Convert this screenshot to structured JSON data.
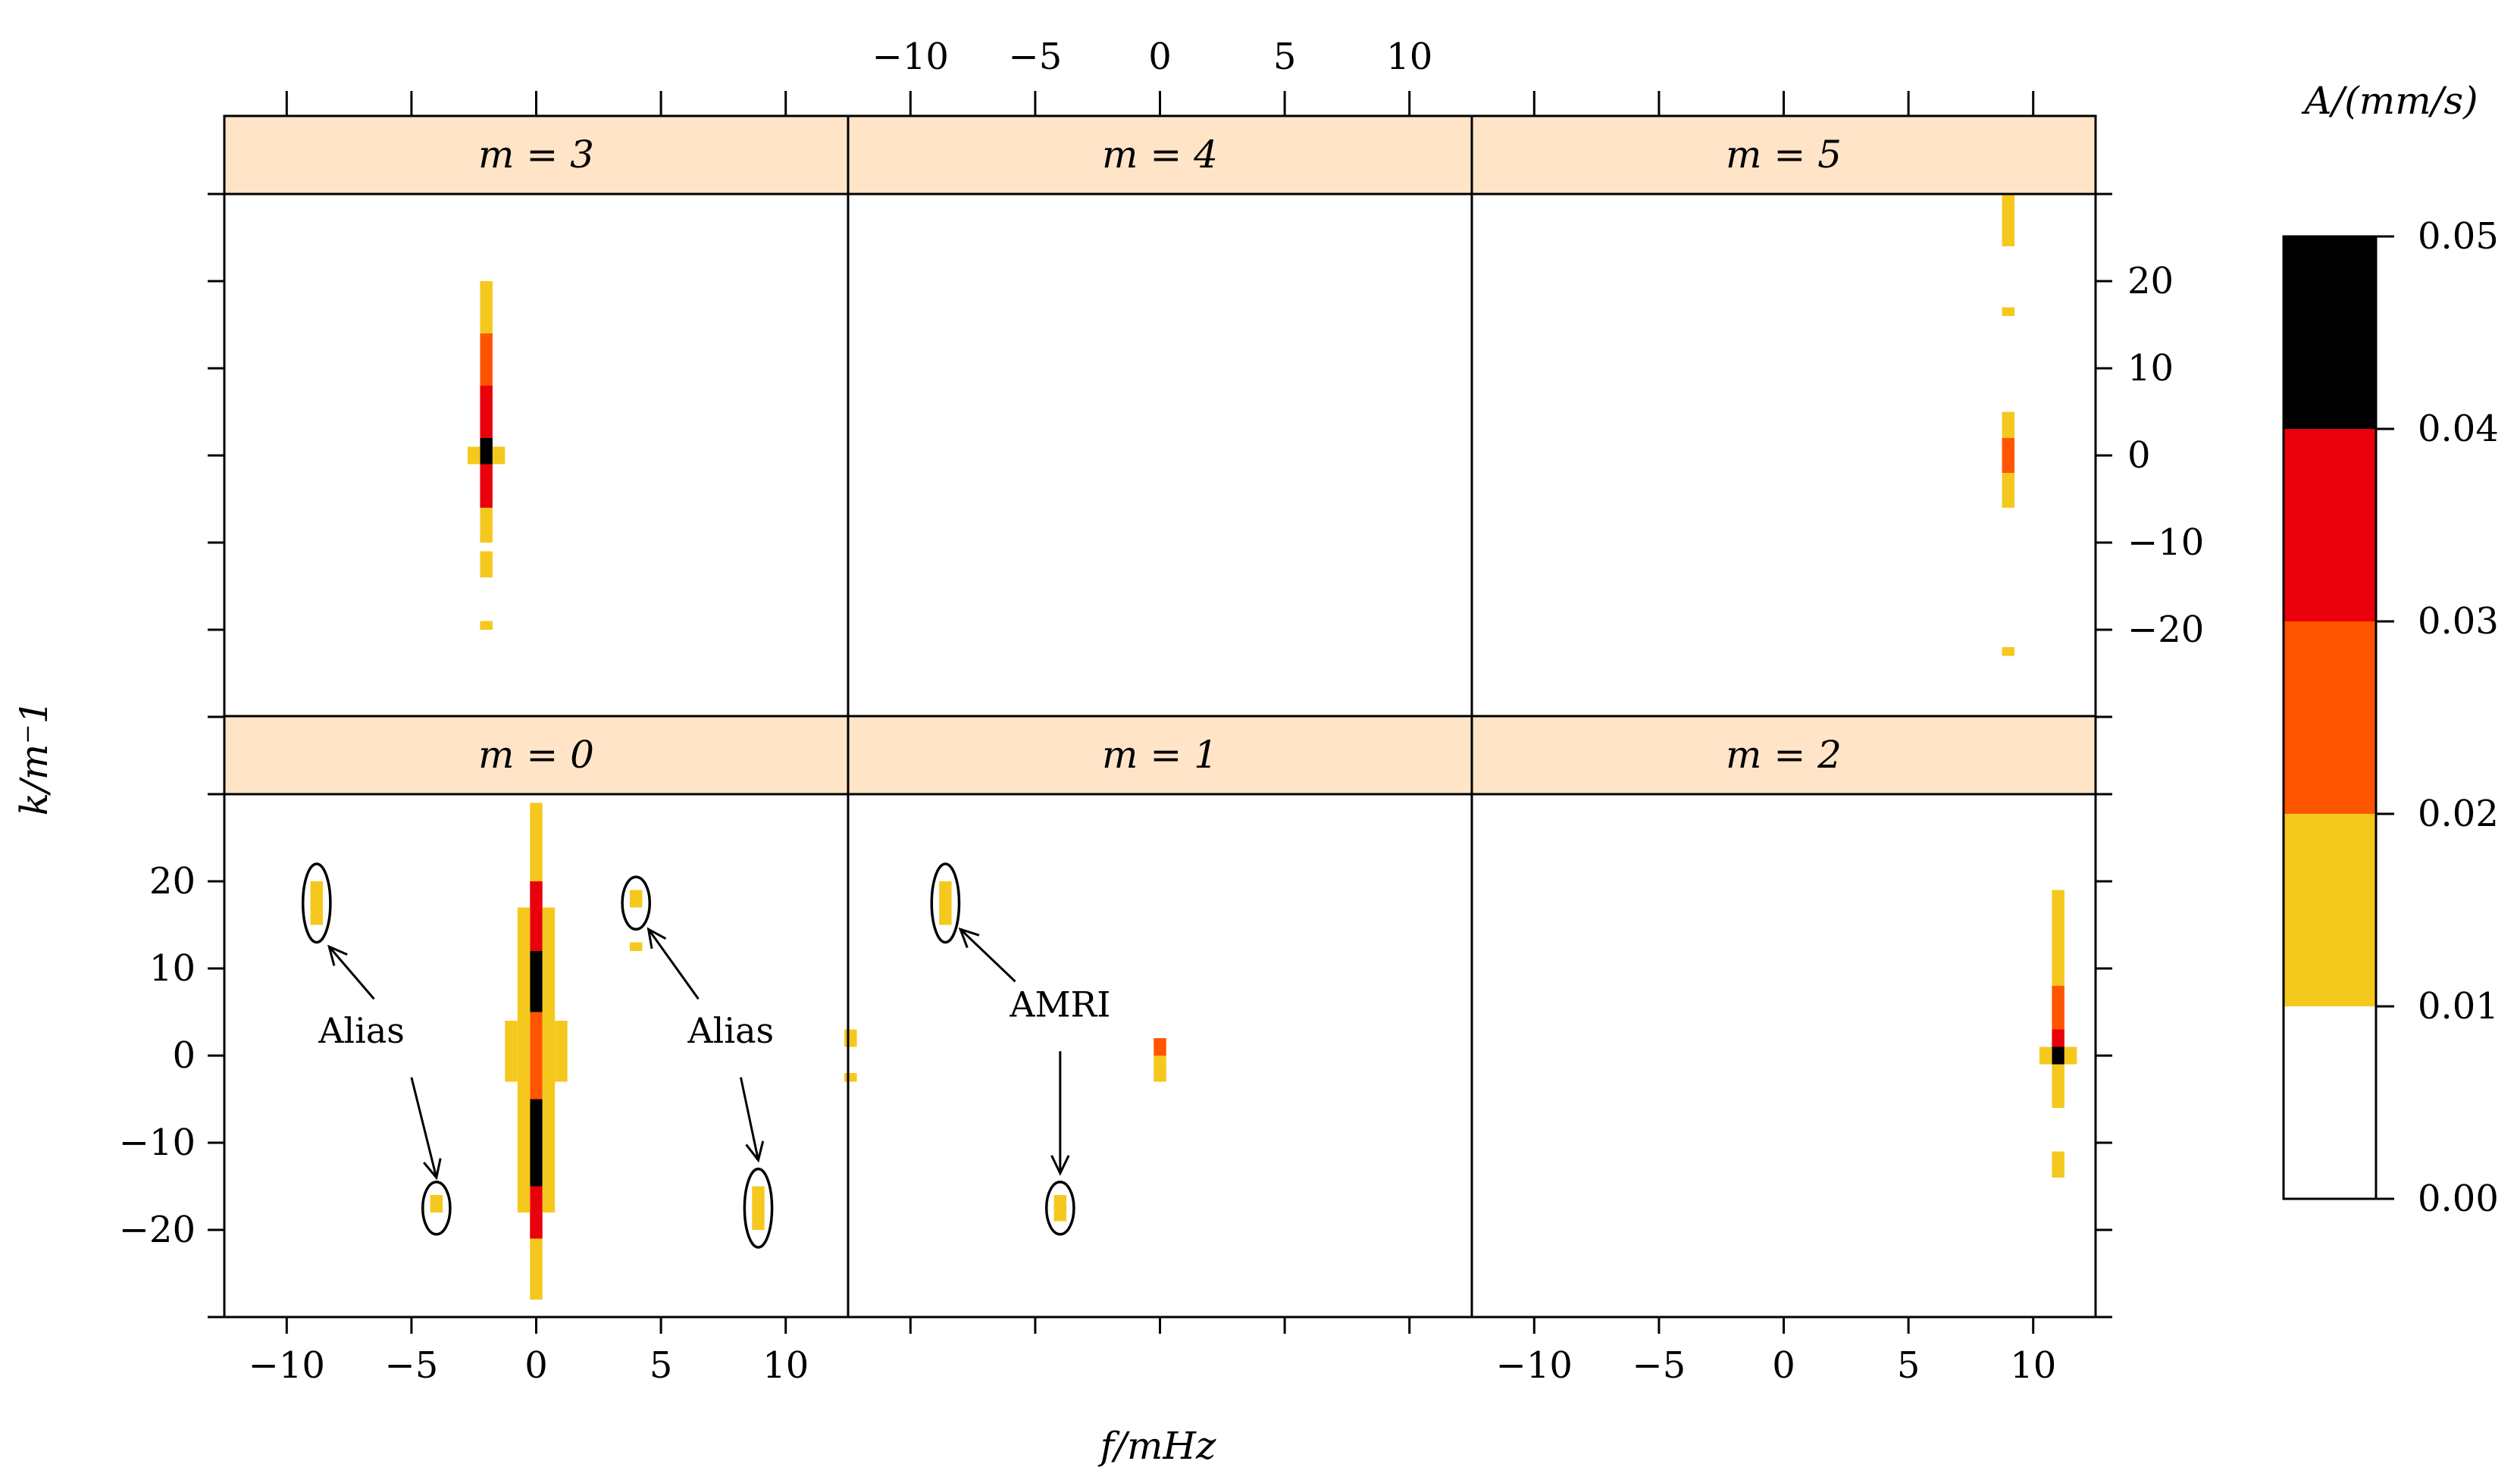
{
  "chart_data": {
    "type": "heatmap",
    "xlabel": "f/mHz",
    "ylabel": "k/m⁻1",
    "xlim": [
      -12.5,
      12.5
    ],
    "ylim": [
      -30,
      30
    ],
    "x_ticks": [
      -10,
      -5,
      0,
      5,
      10
    ],
    "y_ticks": [
      -20,
      -10,
      0,
      10,
      20
    ],
    "x_tick_labels": [
      "−10",
      "−5",
      "0",
      "5",
      "10"
    ],
    "y_tick_labels": [
      "−20",
      "−10",
      "0",
      "10",
      "20"
    ],
    "colorbar": {
      "title": "A/(mm/s)",
      "levels": [
        0.0,
        0.01,
        0.02,
        0.03,
        0.04,
        0.05
      ],
      "level_labels": [
        "0.00",
        "0.01",
        "0.02",
        "0.03",
        "0.04",
        "0.05"
      ],
      "colors": [
        "#ffffff",
        "#f5c81e",
        "#ff5500",
        "#e8000b",
        "#000000"
      ]
    },
    "strip_color": "#ffe4c8",
    "panels": [
      {
        "label": "m = 3",
        "m": 3,
        "row": 0,
        "col": 0,
        "cells": [
          {
            "f": -2.0,
            "k0": 14,
            "k1": 20,
            "level": 1
          },
          {
            "f": -2.0,
            "k0": 8,
            "k1": 14,
            "level": 2
          },
          {
            "f": -2.0,
            "k0": 2,
            "k1": 8,
            "level": 3
          },
          {
            "f": -2.0,
            "k0": -1,
            "k1": 2,
            "level": 4
          },
          {
            "f": -2.0,
            "k0": -6,
            "k1": -1,
            "level": 3
          },
          {
            "f": -2.0,
            "k0": -10,
            "k1": -6,
            "level": 1
          },
          {
            "f": -2.0,
            "k0": -14,
            "k1": -11,
            "level": 1
          },
          {
            "f": -2.0,
            "k0": -20,
            "k1": -19,
            "level": 1
          },
          {
            "f": -2.5,
            "k0": -1,
            "k1": 1,
            "level": 1
          },
          {
            "f": -1.5,
            "k0": -1,
            "k1": 1,
            "level": 1
          }
        ]
      },
      {
        "label": "m = 4",
        "m": 4,
        "row": 0,
        "col": 1,
        "cells": []
      },
      {
        "label": "m = 5",
        "m": 5,
        "row": 0,
        "col": 2,
        "cells": [
          {
            "f": 9.0,
            "k0": 24,
            "k1": 30,
            "level": 1
          },
          {
            "f": 9.0,
            "k0": 16,
            "k1": 17,
            "level": 1
          },
          {
            "f": 9.0,
            "k0": 2,
            "k1": 5,
            "level": 1
          },
          {
            "f": 9.0,
            "k0": -2,
            "k1": 2,
            "level": 2
          },
          {
            "f": 9.0,
            "k0": -6,
            "k1": -2,
            "level": 1
          },
          {
            "f": 9.0,
            "k0": -23,
            "k1": -22,
            "level": 1
          }
        ]
      },
      {
        "label": "m = 0",
        "m": 0,
        "row": 1,
        "col": 0,
        "cells": [
          {
            "f": 0.0,
            "k0": 20,
            "k1": 29,
            "level": 1
          },
          {
            "f": 0.0,
            "k0": 12,
            "k1": 20,
            "level": 3
          },
          {
            "f": 0.0,
            "k0": 5,
            "k1": 12,
            "level": 4
          },
          {
            "f": 0.0,
            "k0": -5,
            "k1": 5,
            "level": 2
          },
          {
            "f": 0.0,
            "k0": -15,
            "k1": -5,
            "level": 4
          },
          {
            "f": 0.0,
            "k0": -21,
            "k1": -15,
            "level": 3
          },
          {
            "f": 0.0,
            "k0": -28,
            "k1": -21,
            "level": 1
          },
          {
            "f": -0.5,
            "k0": -18,
            "k1": 17,
            "level": 1
          },
          {
            "f": 0.5,
            "k0": -18,
            "k1": 17,
            "level": 1
          },
          {
            "f": -1.0,
            "k0": -3,
            "k1": 4,
            "level": 1
          },
          {
            "f": 1.0,
            "k0": -3,
            "k1": 4,
            "level": 1
          },
          {
            "f": -8.8,
            "k0": 15,
            "k1": 20,
            "level": 1
          },
          {
            "f": -4.0,
            "k0": -18,
            "k1": -16,
            "level": 1
          },
          {
            "f": 4.0,
            "k0": 17,
            "k1": 19,
            "level": 1
          },
          {
            "f": 4.0,
            "k0": 12,
            "k1": 13,
            "level": 1
          },
          {
            "f": 8.9,
            "k0": -20,
            "k1": -15,
            "level": 1
          }
        ]
      },
      {
        "label": "m = 1",
        "m": 1,
        "row": 1,
        "col": 1,
        "cells": [
          {
            "f": -12.4,
            "k0": 1,
            "k1": 3,
            "level": 1
          },
          {
            "f": -12.4,
            "k0": -3,
            "k1": -2,
            "level": 1
          },
          {
            "f": -8.6,
            "k0": 15,
            "k1": 20,
            "level": 1
          },
          {
            "f": -4.0,
            "k0": -19,
            "k1": -16,
            "level": 1
          },
          {
            "f": 0.0,
            "k0": 0,
            "k1": 2,
            "level": 2
          },
          {
            "f": 0.0,
            "k0": -3,
            "k1": 0,
            "level": 1
          }
        ]
      },
      {
        "label": "m = 2",
        "m": 2,
        "row": 1,
        "col": 2,
        "cells": [
          {
            "f": 11.0,
            "k0": 8,
            "k1": 19,
            "level": 1
          },
          {
            "f": 11.0,
            "k0": 3,
            "k1": 8,
            "level": 2
          },
          {
            "f": 11.0,
            "k0": 1,
            "k1": 3,
            "level": 3
          },
          {
            "f": 11.0,
            "k0": -1,
            "k1": 1,
            "level": 4
          },
          {
            "f": 11.0,
            "k0": -6,
            "k1": -1,
            "level": 1
          },
          {
            "f": 11.0,
            "k0": -14,
            "k1": -11,
            "level": 1
          },
          {
            "f": 10.5,
            "k0": -1,
            "k1": 1,
            "level": 1
          },
          {
            "f": 11.5,
            "k0": -1,
            "k1": 1,
            "level": 1
          }
        ]
      }
    ],
    "annotations": [
      {
        "panel": "m = 0",
        "text": "Alias",
        "tx": -7.0,
        "ty": 1.5,
        "ellipses": [
          {
            "cx": -8.8,
            "cy": 17.5,
            "rx": 0.55,
            "ry": 4.5
          },
          {
            "cx": -4.0,
            "cy": -17.5,
            "rx": 0.55,
            "ry": 3.0
          }
        ],
        "arrows": [
          {
            "x0": -6.5,
            "y0": 6.5,
            "x1": -8.3,
            "y1": 12.5
          },
          {
            "x0": -5.0,
            "y0": -2.5,
            "x1": -4.0,
            "y1": -14.0
          }
        ]
      },
      {
        "panel": "m = 0",
        "text": "Alias",
        "tx": 7.8,
        "ty": 1.5,
        "ellipses": [
          {
            "cx": 4.0,
            "cy": 17.5,
            "rx": 0.55,
            "ry": 3.0
          },
          {
            "cx": 8.9,
            "cy": -17.5,
            "rx": 0.55,
            "ry": 4.5
          }
        ],
        "arrows": [
          {
            "x0": 6.5,
            "y0": 6.5,
            "x1": 4.5,
            "y1": 14.5
          },
          {
            "x0": 8.2,
            "y0": -2.5,
            "x1": 8.9,
            "y1": -12.0
          }
        ]
      },
      {
        "panel": "m = 1",
        "text": "AMRI",
        "tx": -4.0,
        "ty": 4.5,
        "ellipses": [
          {
            "cx": -8.6,
            "cy": 17.5,
            "rx": 0.55,
            "ry": 4.5
          },
          {
            "cx": -4.0,
            "cy": -17.5,
            "rx": 0.55,
            "ry": 3.0
          }
        ],
        "arrows": [
          {
            "x0": -5.8,
            "y0": 8.5,
            "x1": -8.0,
            "y1": 14.5
          },
          {
            "x0": -4.0,
            "y0": 0.5,
            "x1": -4.0,
            "y1": -13.5
          }
        ]
      }
    ]
  }
}
